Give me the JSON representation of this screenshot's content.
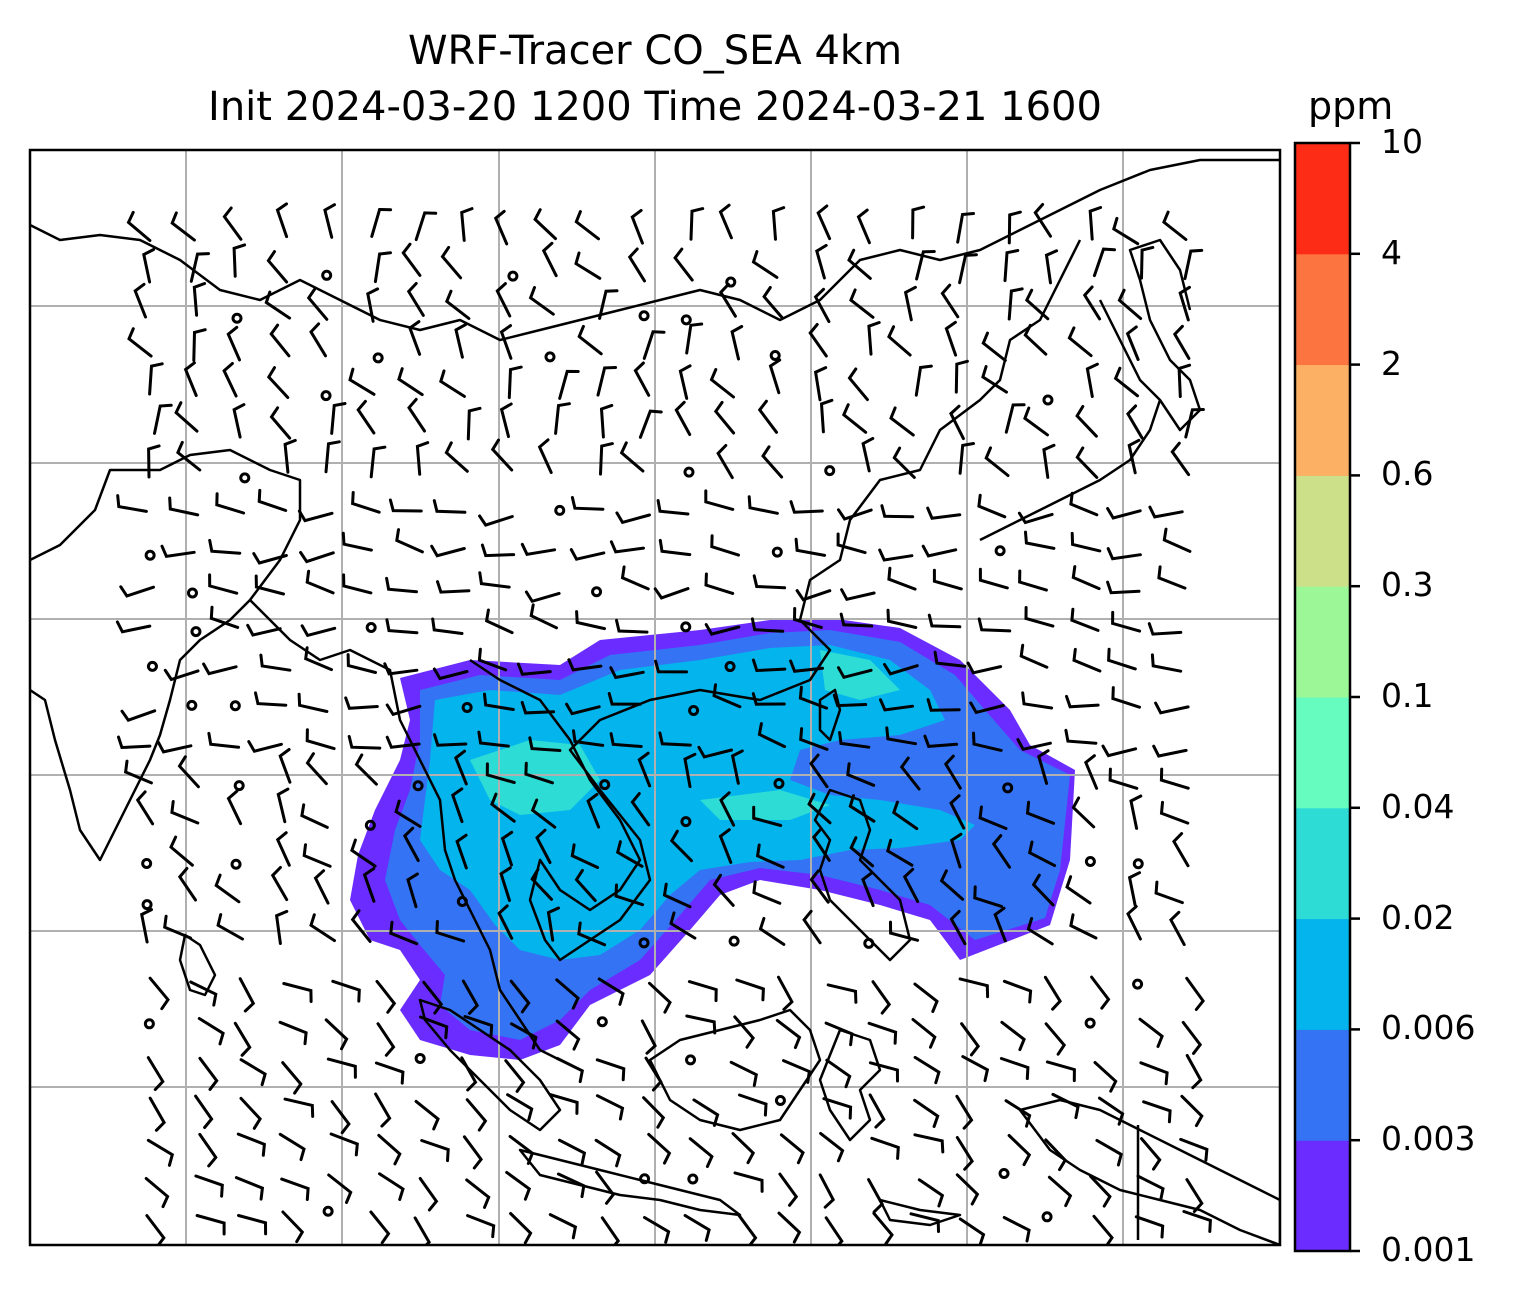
{
  "title": {
    "line1": "WRF-Tracer CO_SEA 4km",
    "line2": "Init 2024-03-20 1200 Time 2024-03-21 1600"
  },
  "colorbar": {
    "unit": "ppm",
    "levels": [
      "0.001",
      "0.003",
      "0.006",
      "0.02",
      "0.04",
      "0.1",
      "0.3",
      "0.6",
      "2",
      "4",
      "10"
    ],
    "colors": [
      "#6a2cff",
      "#3474f4",
      "#04b4ec",
      "#2edcd6",
      "#66fcbf",
      "#9cf896",
      "#cce08a",
      "#fcb064",
      "#fc743f",
      "#fc2c16"
    ]
  },
  "map": {
    "type": "filled-contour map with wind barbs",
    "field": "CO_SEA tracer",
    "gridlines": true,
    "coastlines": true,
    "overlay": "wind barbs"
  }
}
